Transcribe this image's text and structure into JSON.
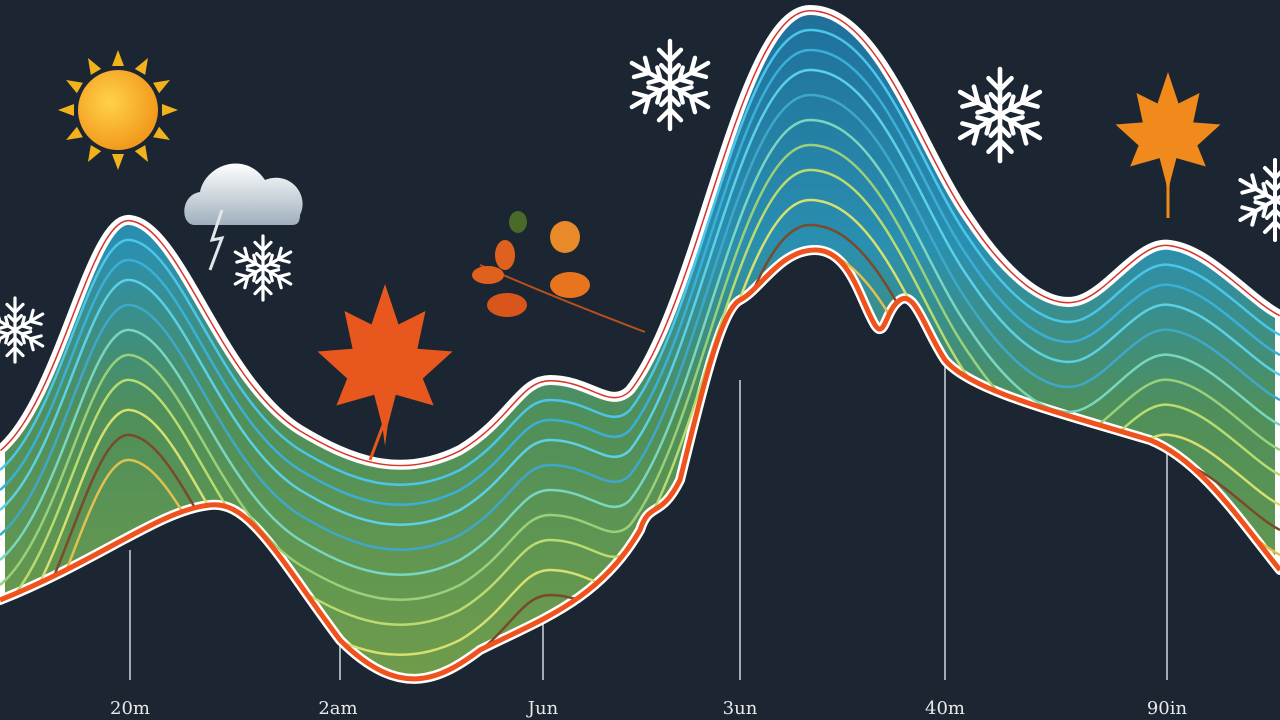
{
  "axis_labels": [
    "20m",
    "2am",
    "Jun",
    "3un",
    "40m",
    "90in"
  ]
}
